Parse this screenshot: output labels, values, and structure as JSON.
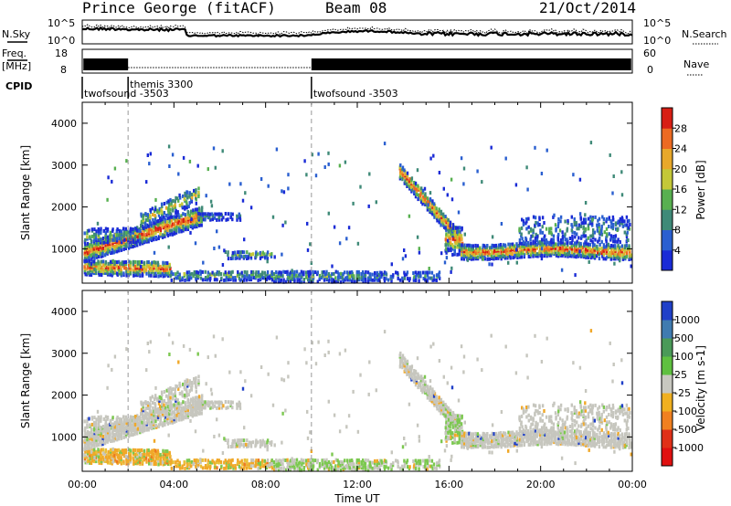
{
  "header": {
    "station": "Prince George (fitACF)",
    "beam": "Beam 08",
    "date": "21/Oct/2014"
  },
  "strip_labels": {
    "nsky": "N.Sky",
    "nsearch": "N.Search",
    "freq_line1": "Freq.",
    "freq_line2": "[MHz]",
    "nave": "Nave",
    "cpid": "CPID"
  },
  "strip_ticks": {
    "nsky_top": "10^5",
    "nsky_bottom": "10^0",
    "nsearch_top": "10^5",
    "nsearch_bottom": "10^0",
    "freq_top": "18",
    "freq_bottom": "8",
    "nave_top": "60",
    "nave_bottom": "0"
  },
  "cpid_segments": [
    {
      "label": "twofsound -3503",
      "start_hour": 0.0
    },
    {
      "label": "themis 3300",
      "start_hour": 2.0
    },
    {
      "label": "twofsound -3503",
      "start_hour": 10.0
    }
  ],
  "chart_data": [
    {
      "type": "heatmap",
      "title": "",
      "quantity": "Power",
      "ylabel": "Slant Range [km]",
      "xlabel": "",
      "xlim": [
        0,
        24
      ],
      "ylim": [
        180,
        4500
      ],
      "yticks": [
        "1000",
        "2000",
        "3000",
        "4000"
      ],
      "colorbar": {
        "label": "Power [dB]",
        "ticks": [
          "4",
          "8",
          "12",
          "16",
          "20",
          "24",
          "28"
        ],
        "colors": [
          "#1a2bd6",
          "#2a5fd0",
          "#3f8a78",
          "#58b050",
          "#c4c838",
          "#e8a82a",
          "#ec6a22",
          "#d81e14"
        ],
        "range": [
          0,
          32
        ]
      }
    },
    {
      "type": "heatmap",
      "title": "",
      "quantity": "Velocity",
      "ylabel": "Slant Range [km]",
      "xlabel": "Time UT",
      "xlim": [
        0,
        24
      ],
      "ylim": [
        180,
        4500
      ],
      "yticks": [
        "1000",
        "2000",
        "3000",
        "4000"
      ],
      "xticks": [
        "00:00",
        "04:00",
        "08:00",
        "12:00",
        "16:00",
        "20:00",
        "00:00"
      ],
      "colorbar": {
        "label": "Velocity [m s-1]",
        "ticks": [
          "1000",
          "500",
          "100",
          "25",
          "-25",
          "-100",
          "-500",
          "-1000"
        ],
        "colors": [
          "#2040c8",
          "#3f7bb0",
          "#4a9a58",
          "#5fc040",
          "#c8c8c0",
          "#f0b020",
          "#f08020",
          "#e03018",
          "#e01010"
        ]
      }
    }
  ]
}
